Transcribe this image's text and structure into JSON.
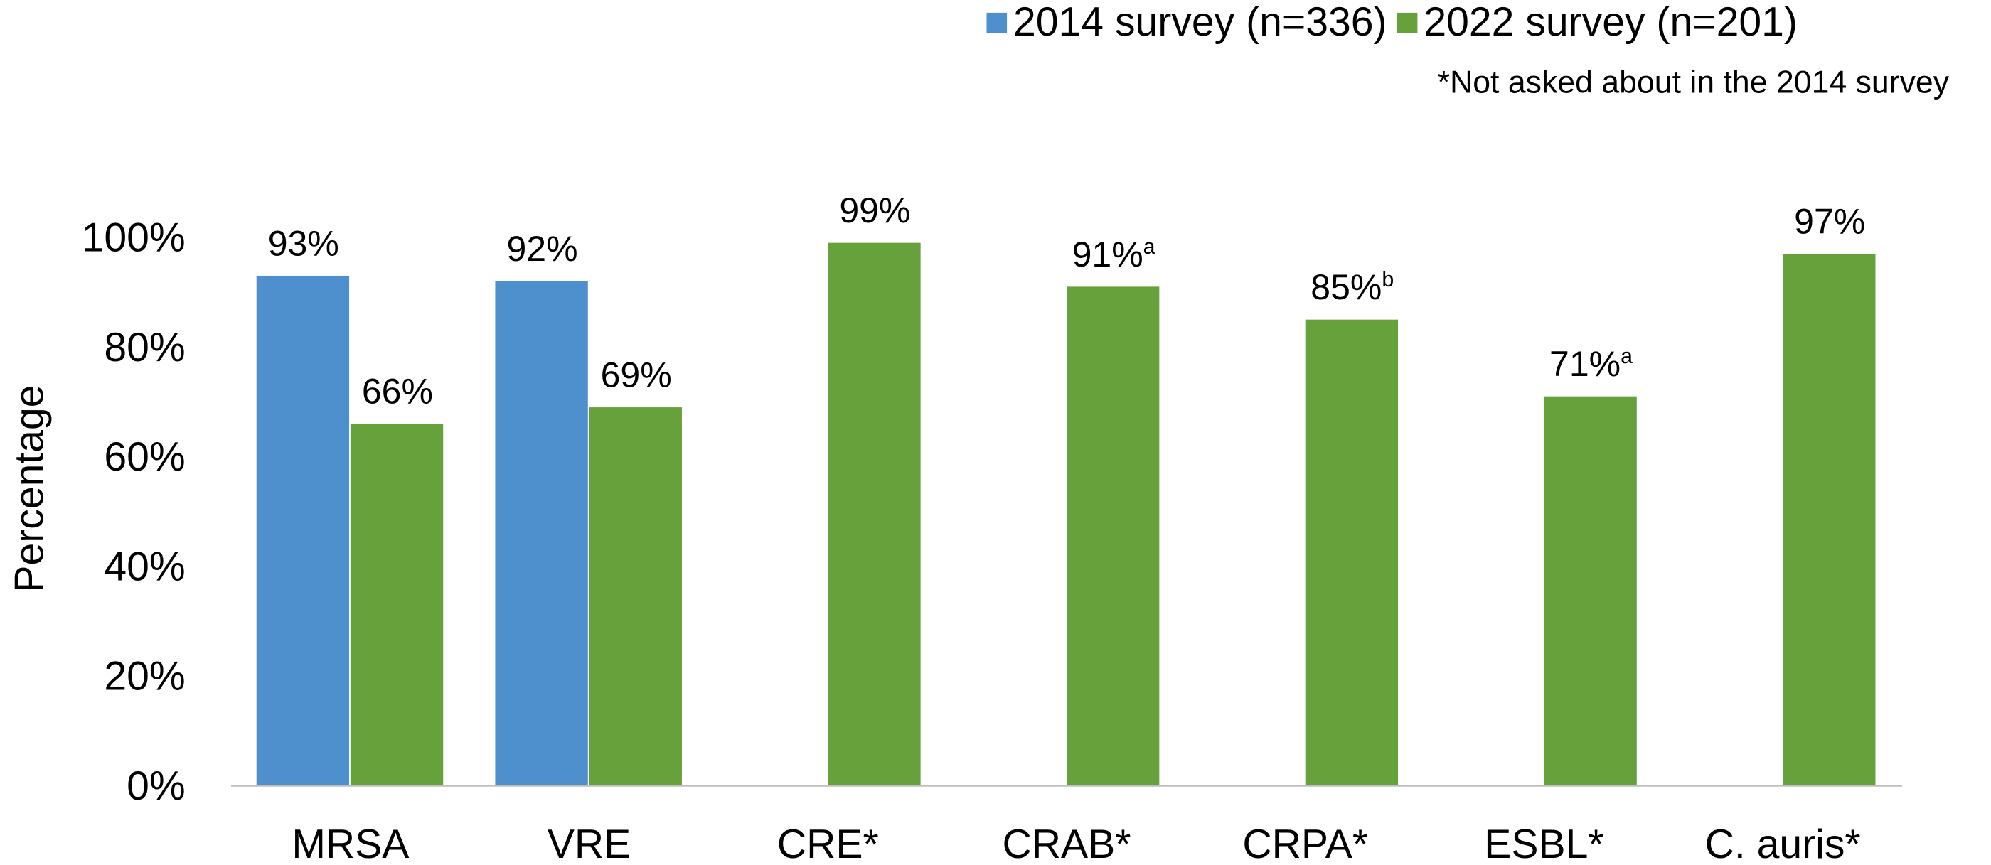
{
  "chart_data": {
    "type": "bar",
    "y_label": "Percentage",
    "note": "*Not asked about in the 2014 survey",
    "categories": [
      "MRSA",
      "VRE",
      "CRE*",
      "CRAB*",
      "CRPA*",
      "ESBL*",
      "C. auris*"
    ],
    "series": [
      {
        "name": "2014 survey (n=336)",
        "color": "#4e8fce",
        "values": [
          93,
          92,
          null,
          null,
          null,
          null,
          null
        ],
        "value_labels": [
          "93%",
          "92%",
          null,
          null,
          null,
          null,
          null
        ]
      },
      {
        "name": "2022 survey (n=201)",
        "color": "#67a13c",
        "values": [
          66,
          69,
          99,
          91,
          85,
          71,
          97
        ],
        "value_labels": [
          "66%",
          "69%",
          "99%",
          "91%",
          "85%",
          "71%",
          "97%"
        ],
        "superscripts": [
          null,
          null,
          null,
          "a",
          "b",
          "a",
          null
        ]
      }
    ],
    "ylim": [
      0,
      100
    ],
    "yticks": [
      {
        "value": 0,
        "label": "0%"
      },
      {
        "value": 20,
        "label": "20%"
      },
      {
        "value": 40,
        "label": "40%"
      },
      {
        "value": 60,
        "label": "60%"
      },
      {
        "value": 80,
        "label": "80%"
      },
      {
        "value": 100,
        "label": "100%"
      }
    ],
    "grid": false,
    "legend": "top-right"
  }
}
